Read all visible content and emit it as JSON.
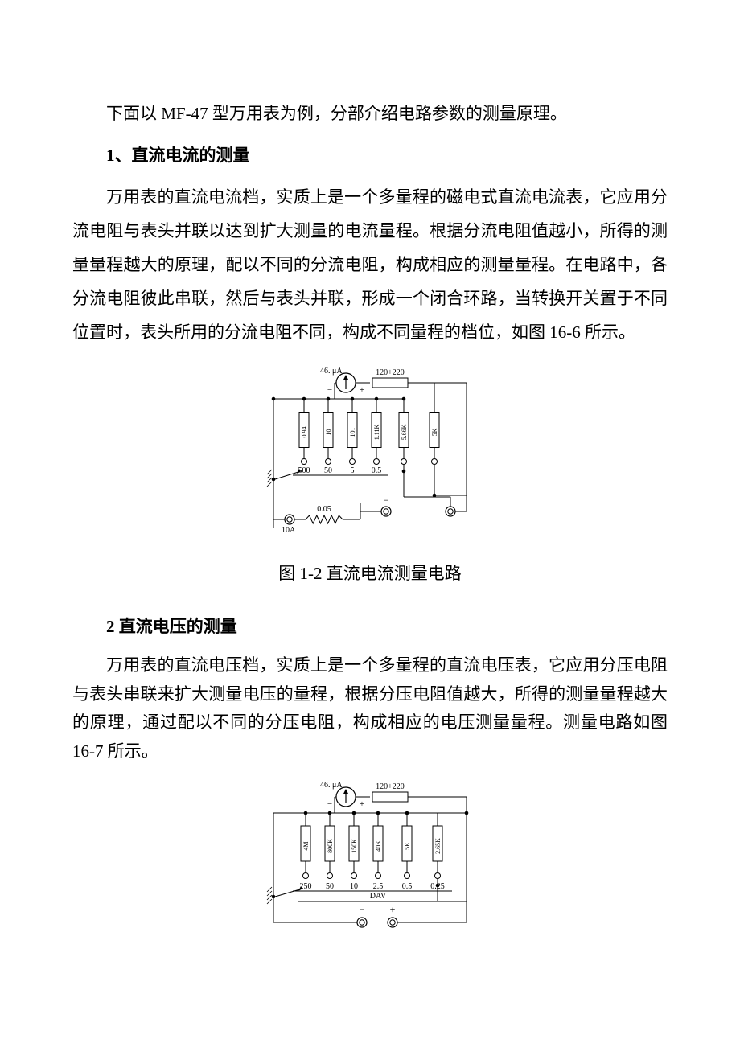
{
  "intro": "下面以 MF-47 型万用表为例，分部介绍电路参数的测量原理。",
  "section1": {
    "heading": "1、直流电流的测量",
    "body": "万用表的直流电流档，实质上是一个多量程的磁电式直流电流表，它应用分流电阻与表头并联以达到扩大测量的电流量程。根据分流电阻值越小，所得的测量量程越大的原理，配以不同的分流电阻，构成相应的测量量程。在电路中，各分流电阻彼此串联，然后与表头并联，形成一个闭合环路，当转换开关置于不同位置时，表头所用的分流电阻不同，构成不同量程的档位，如图 16-6 所示。"
  },
  "fig1": {
    "caption": "图 1-2 直流电流测量电路",
    "meter_label": "46. μA",
    "series_r_label": "120+220",
    "meter_minus": "−",
    "meter_plus": "+",
    "resistors": [
      {
        "label": "0.94",
        "tap": "500"
      },
      {
        "label": "10",
        "tap": "50"
      },
      {
        "label": "101",
        "tap": "5"
      },
      {
        "label": "1.11K",
        "tap": "0.5"
      },
      {
        "label": "5.66K",
        "tap": ""
      },
      {
        "label": "5K",
        "tap": ""
      }
    ],
    "bottom_r_label": "0.05",
    "left_terminal_label": "10A",
    "term_minus": "−",
    "term_plus": "+",
    "stroke": "#000000",
    "bg": "#ffffff",
    "font_small": 10,
    "font_tiny": 8
  },
  "section2": {
    "heading": "2  直流电压的测量",
    "body": "万用表的直流电压档，实质上是一个多量程的直流电压表，它应用分压电阻与表头串联来扩大测量电压的量程，根据分压电阻值越大，所得的测量量程越大的原理，通过配以不同的分压电阻，构成相应的电压测量量程。测量电路如图 16-7 所示。"
  },
  "fig2": {
    "meter_label": "46. μA",
    "series_r_label": "120+220",
    "meter_minus": "−",
    "meter_plus": "+",
    "resistors": [
      {
        "label": "4M",
        "tap": "250"
      },
      {
        "label": "800K",
        "tap": "50"
      },
      {
        "label": "150K",
        "tap": "10"
      },
      {
        "label": "40K",
        "tap": "2.5"
      },
      {
        "label": "5K",
        "tap": "0.5"
      },
      {
        "label": "2.65K",
        "tap": "0.25"
      }
    ],
    "bus_label": "DAV",
    "term_minus": "−",
    "term_plus": "+",
    "stroke": "#000000",
    "bg": "#ffffff",
    "font_small": 10,
    "font_tiny": 8
  }
}
